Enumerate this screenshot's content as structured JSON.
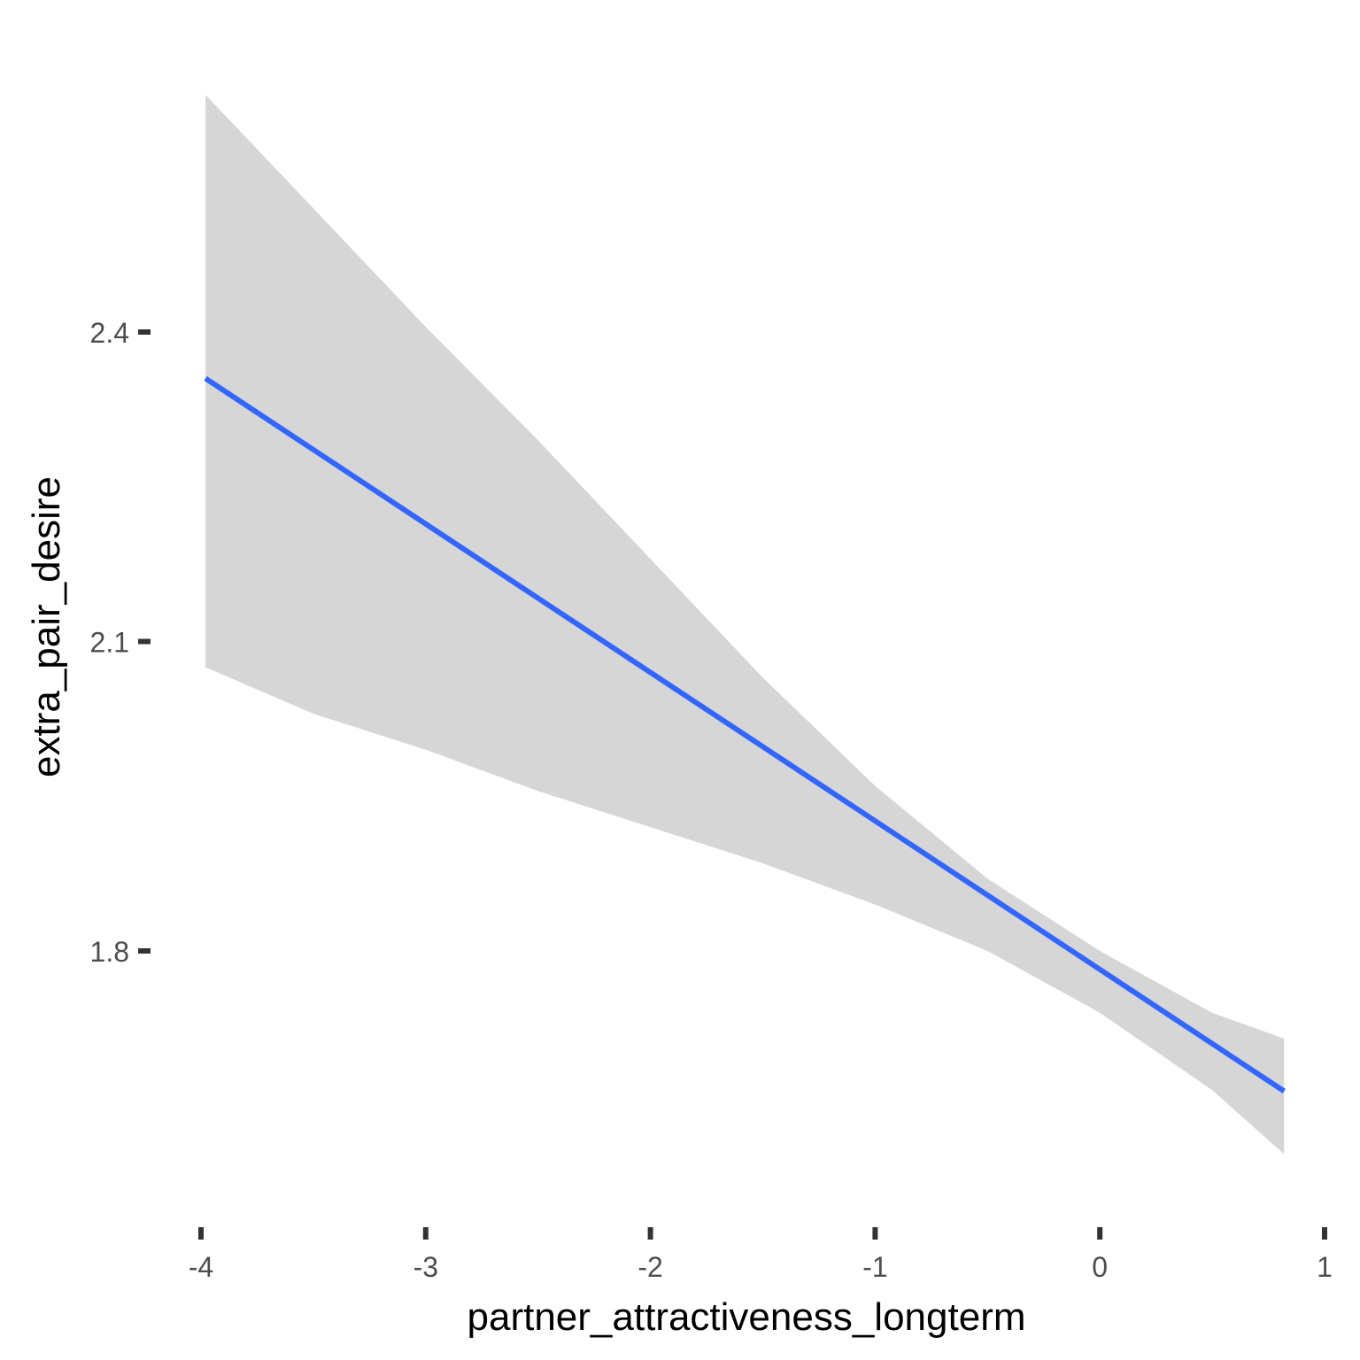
{
  "chart_data": {
    "type": "line",
    "title": "",
    "xlabel": "partner_attractiveness_longterm",
    "ylabel": "extra_pair_desire",
    "xlim": [
      -4,
      1
    ],
    "ylim": [
      1.55,
      2.65
    ],
    "x_ticks": [
      -4,
      -3,
      -2,
      -1,
      0,
      1
    ],
    "x_tick_labels": [
      "-4",
      "-3",
      "-2",
      "-1",
      "0",
      "1"
    ],
    "y_ticks": [
      1.8,
      2.1,
      2.4
    ],
    "y_tick_labels": [
      "1.8",
      "2.1",
      "2.4"
    ],
    "grid": false,
    "legend": "none",
    "series": [
      {
        "x": [
          -3.98,
          0.82
        ],
        "y": [
          2.355,
          1.664
        ]
      }
    ],
    "ribbon": {
      "x": [
        -3.98,
        -3.5,
        -3.0,
        -2.5,
        -2.0,
        -1.5,
        -1.0,
        -0.5,
        0.0,
        0.5,
        0.82
      ],
      "upper": [
        2.63,
        2.52,
        2.405,
        2.295,
        2.18,
        2.065,
        1.96,
        1.87,
        1.8,
        1.74,
        1.715
      ],
      "lower": [
        2.075,
        2.03,
        1.995,
        1.955,
        1.92,
        1.885,
        1.845,
        1.8,
        1.74,
        1.665,
        1.603
      ]
    },
    "colors": {
      "line": "#3366ff",
      "ribbon": "#d6d6d6",
      "tick_label": "#4d4d4d",
      "tick": "#333333",
      "axis_title": "#000000"
    }
  }
}
